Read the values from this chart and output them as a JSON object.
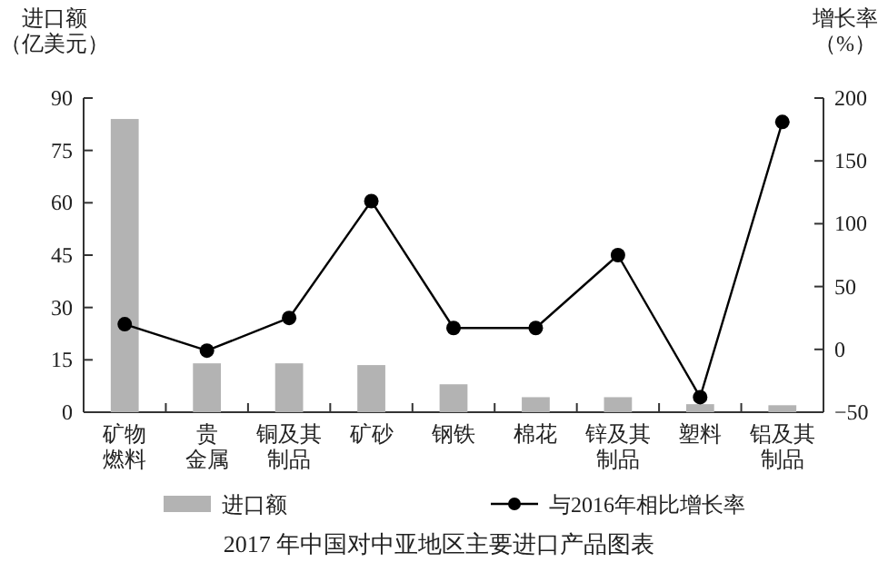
{
  "chart_data": {
    "type": "bar",
    "title": "2017 年中国对中亚地区主要进口产品图表",
    "ylabel": "进口额（亿美元）",
    "y2label": "增长率（%）",
    "categories": [
      "矿物燃料",
      "贵金属",
      "铜及其制品",
      "矿砂",
      "钢铁",
      "棉花",
      "锌及其制品",
      "塑料",
      "铝及其制品"
    ],
    "series": [
      {
        "name": "进口额",
        "color": "#b3b3b3",
        "values": [
          84,
          14,
          14,
          13.5,
          8,
          4.3,
          4.3,
          2.3,
          2
        ]
      },
      {
        "name": "与2016年相比增长率",
        "type": "line",
        "axis": "y2",
        "color": "#000000",
        "marker": "circle",
        "values": [
          20,
          -1,
          25,
          118,
          17,
          17,
          75,
          -38,
          181
        ]
      }
    ],
    "ylim": [
      0,
      90
    ],
    "yticks": [
      0,
      15,
      30,
      45,
      60,
      75,
      90
    ],
    "y2lim": [
      -50,
      200
    ],
    "y2ticks": [
      -50,
      0,
      50,
      100,
      150,
      200
    ],
    "legend": "bottom"
  }
}
